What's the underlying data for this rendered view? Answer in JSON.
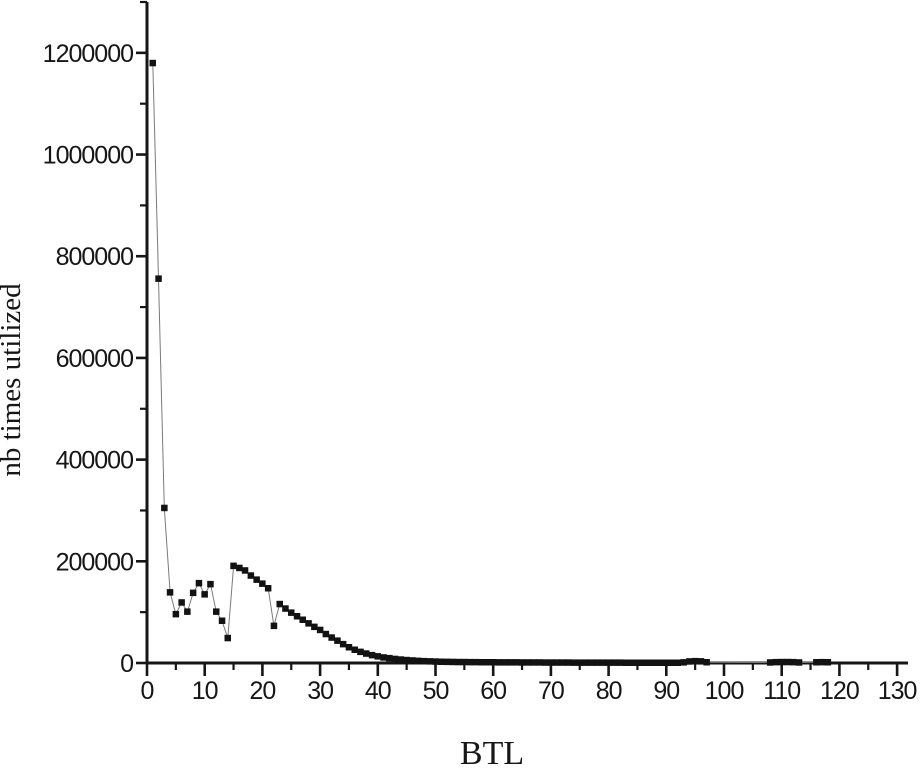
{
  "figure": {
    "background": "#ffffff",
    "axis_color": "#161616",
    "text_color": "#161616"
  },
  "chart_data": {
    "type": "scatter",
    "title": "",
    "xlabel": "BTL",
    "ylabel": "nb times utilized",
    "legend": "none",
    "grid": "off",
    "xlim": [
      0,
      131.5
    ],
    "ylim": [
      0,
      1300000
    ],
    "x_ticks_major": [
      0,
      10,
      20,
      30,
      40,
      50,
      60,
      70,
      80,
      90,
      100,
      110,
      120,
      130
    ],
    "x_ticks_minor": [
      5,
      15,
      25,
      35,
      45,
      55,
      65,
      75,
      85,
      95,
      105,
      115,
      125
    ],
    "y_ticks_major": [
      0,
      200000,
      400000,
      600000,
      800000,
      1000000,
      1200000
    ],
    "y_ticks_minor": [
      100000,
      300000,
      500000,
      700000,
      900000,
      1100000,
      1300000
    ],
    "marker": {
      "shape": "square",
      "size": 6.5,
      "color": "#121212"
    },
    "line": {
      "color": "#7a7a7a",
      "width": 1
    },
    "points": [
      [
        1,
        1180000
      ],
      [
        2,
        756000
      ],
      [
        3,
        305000
      ],
      [
        4,
        139000
      ],
      [
        5,
        96000
      ],
      [
        6,
        119000
      ],
      [
        7,
        101000
      ],
      [
        8,
        138000
      ],
      [
        9,
        157000
      ],
      [
        10,
        135000
      ],
      [
        11,
        155000
      ],
      [
        12,
        101000
      ],
      [
        13,
        83000
      ],
      [
        14,
        49000
      ],
      [
        15,
        191000
      ],
      [
        16,
        187000
      ],
      [
        17,
        182000
      ],
      [
        18,
        172000
      ],
      [
        19,
        164000
      ],
      [
        20,
        156000
      ],
      [
        21,
        147000
      ],
      [
        22,
        73000
      ],
      [
        23,
        116000
      ],
      [
        24,
        107000
      ],
      [
        25,
        99000
      ],
      [
        26,
        92000
      ],
      [
        27,
        85000
      ],
      [
        28,
        78000
      ],
      [
        29,
        71000
      ],
      [
        30,
        65000
      ],
      [
        31,
        57000
      ],
      [
        32,
        50000
      ],
      [
        33,
        44000
      ],
      [
        34,
        37000
      ],
      [
        35,
        31000
      ],
      [
        36,
        26000
      ],
      [
        37,
        22000
      ],
      [
        38,
        18500
      ],
      [
        39,
        15500
      ],
      [
        40,
        13000
      ],
      [
        41,
        11000
      ],
      [
        42,
        9500
      ],
      [
        43,
        8000
      ],
      [
        44,
        6800
      ],
      [
        45,
        5800
      ],
      [
        46,
        5000
      ],
      [
        47,
        4300
      ],
      [
        48,
        3700
      ],
      [
        49,
        3200
      ],
      [
        50,
        2800
      ],
      [
        51,
        2500
      ],
      [
        52,
        2300
      ],
      [
        53,
        2100
      ],
      [
        54,
        1900
      ],
      [
        55,
        1800
      ],
      [
        56,
        1700
      ],
      [
        57,
        1600
      ],
      [
        58,
        1500
      ],
      [
        59,
        1450
      ],
      [
        60,
        1400
      ],
      [
        61,
        1350
      ],
      [
        62,
        1300
      ],
      [
        63,
        1250
      ],
      [
        64,
        1200
      ],
      [
        65,
        1150
      ],
      [
        66,
        1100
      ],
      [
        67,
        1050
      ],
      [
        68,
        1000
      ],
      [
        69,
        950
      ],
      [
        70,
        900
      ],
      [
        71,
        870
      ],
      [
        72,
        840
      ],
      [
        73,
        810
      ],
      [
        74,
        780
      ],
      [
        75,
        750
      ],
      [
        76,
        720
      ],
      [
        77,
        700
      ],
      [
        78,
        680
      ],
      [
        79,
        660
      ],
      [
        80,
        640
      ],
      [
        81,
        620
      ],
      [
        82,
        600
      ],
      [
        83,
        580
      ],
      [
        84,
        560
      ],
      [
        85,
        540
      ],
      [
        86,
        520
      ],
      [
        87,
        500
      ],
      [
        88,
        490
      ],
      [
        89,
        480
      ],
      [
        90,
        470
      ],
      [
        91,
        460
      ],
      [
        92,
        450
      ],
      [
        93,
        1200
      ],
      [
        94,
        3000
      ],
      [
        95,
        3600
      ],
      [
        96,
        3200
      ],
      [
        97,
        1500
      ],
      [
        108,
        1000
      ],
      [
        109,
        1600
      ],
      [
        110,
        1900
      ],
      [
        111,
        1900
      ],
      [
        112,
        1600
      ],
      [
        113,
        1000
      ],
      [
        116,
        1400
      ],
      [
        117,
        1700
      ],
      [
        118,
        1400
      ]
    ]
  }
}
